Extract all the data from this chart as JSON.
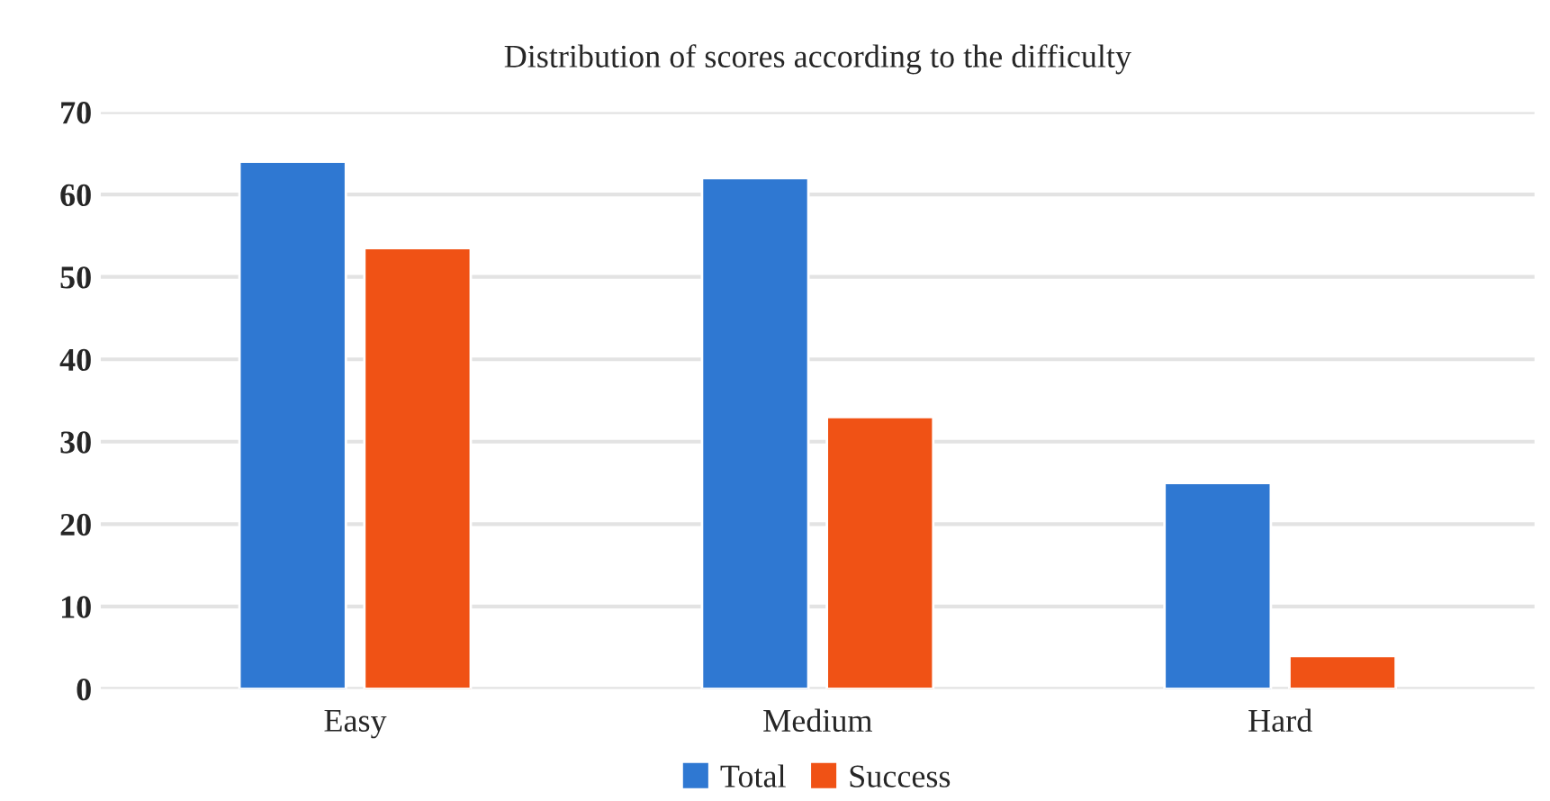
{
  "chart_data": {
    "type": "bar",
    "title": "Distribution of scores according to the difficulty",
    "categories": [
      "Easy",
      "Medium",
      "Hard"
    ],
    "series": [
      {
        "name": "Total",
        "color": "#2f78d2",
        "values": [
          64,
          62,
          25
        ]
      },
      {
        "name": "Success",
        "color": "#f05215",
        "values": [
          53.5,
          33,
          4
        ]
      }
    ],
    "ylim": [
      0,
      70
    ],
    "yticks": [
      0,
      10,
      20,
      30,
      40,
      50,
      60,
      70
    ],
    "grid": "y",
    "legend": "bottom"
  }
}
